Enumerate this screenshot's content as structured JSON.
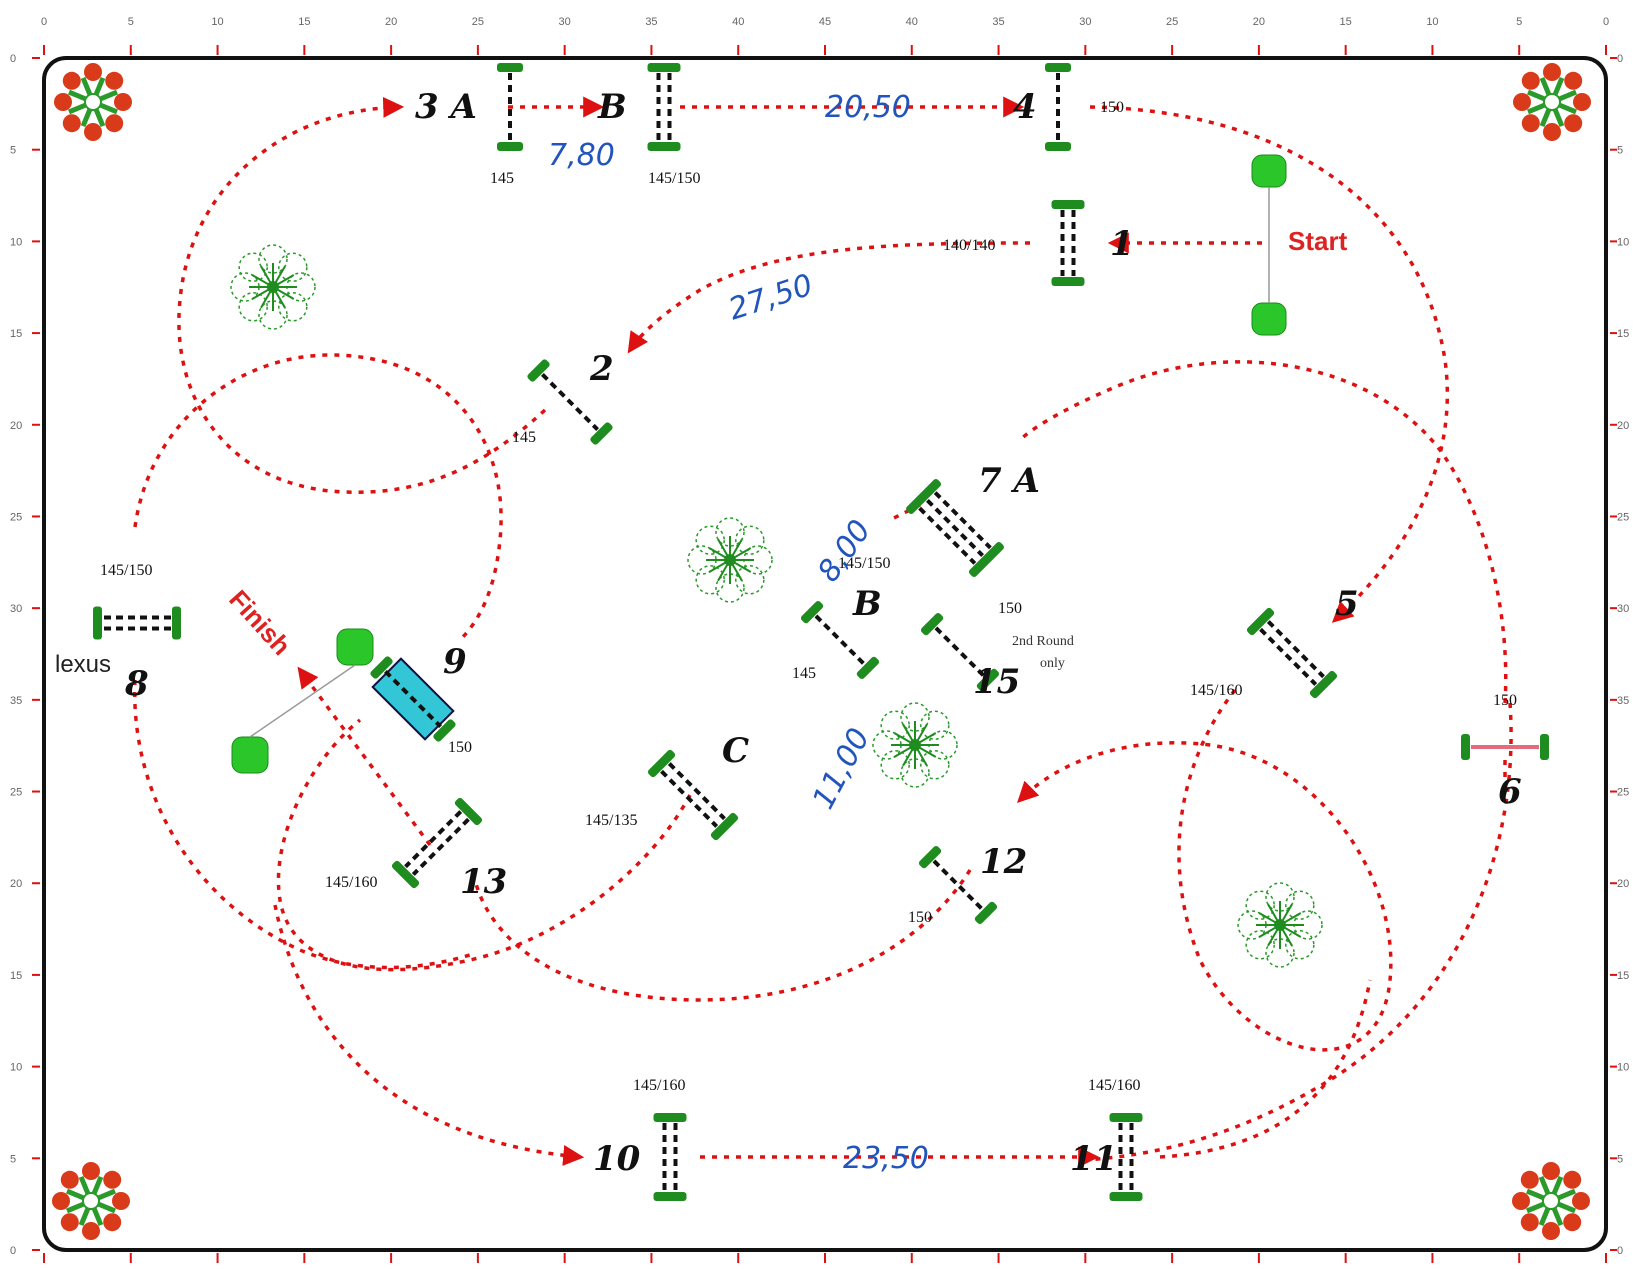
{
  "ruler_top": [
    "0",
    "5",
    "10",
    "15",
    "20",
    "25",
    "30",
    "35",
    "40",
    "45",
    "40",
    "35",
    "30",
    "25",
    "20",
    "15",
    "10",
    "5",
    "0"
  ],
  "ruler_side": [
    "0",
    "5",
    "10",
    "15",
    "20",
    "25",
    "30",
    "35",
    "25",
    "20",
    "15",
    "10",
    "5",
    "0"
  ],
  "jumps": [
    {
      "id": "1",
      "label": "1",
      "height": "140/140"
    },
    {
      "id": "2",
      "label": "2",
      "height": "145"
    },
    {
      "id": "3A",
      "label": "3 A",
      "height": "145"
    },
    {
      "id": "3B",
      "label": "B",
      "height": "145/150"
    },
    {
      "id": "4",
      "label": "4",
      "height": "150"
    },
    {
      "id": "5",
      "label": "5",
      "height": "145/160"
    },
    {
      "id": "6",
      "label": "6",
      "height": "150"
    },
    {
      "id": "7A",
      "label": "7 A",
      "height": "145/150"
    },
    {
      "id": "7B",
      "label": "B",
      "height": "145"
    },
    {
      "id": "7C",
      "label": "C",
      "height": "145/135"
    },
    {
      "id": "8",
      "label": "8",
      "height": "145/150"
    },
    {
      "id": "9",
      "label": "9",
      "height": "150"
    },
    {
      "id": "10",
      "label": "10",
      "height": "145/160"
    },
    {
      "id": "11",
      "label": "11",
      "height": "145/160"
    },
    {
      "id": "12",
      "label": "12",
      "height": "150"
    },
    {
      "id": "13",
      "label": "13",
      "height": "145/160"
    },
    {
      "id": "15",
      "label": "15",
      "height": "150"
    }
  ],
  "distances": [
    "20,50",
    "7,80",
    "27,50",
    "8,00",
    "11,00",
    "23,50"
  ],
  "labels": {
    "start": "Start",
    "finish": "Finish",
    "sponsor": "lexus",
    "note_line1": "2nd Round",
    "note_line2": "only"
  },
  "colors": {
    "path": "#d11111",
    "jump": "#1e8c1e",
    "water": "#33c6d6",
    "distance": "#2255bb",
    "start_finish": "#d22222"
  }
}
